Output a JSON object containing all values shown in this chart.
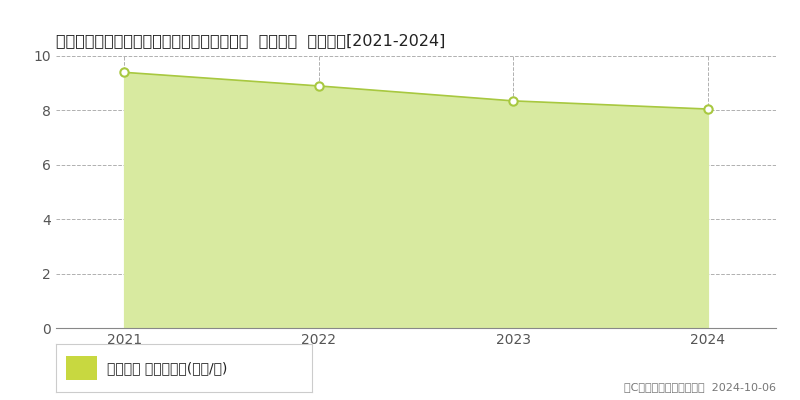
{
  "title": "愛知県知多郡南知多町大字豊浜字鳥居８８番  基準地価  地価推移[2021-2024]",
  "years": [
    2021,
    2022,
    2023,
    2024
  ],
  "values": [
    9.4,
    8.9,
    8.35,
    8.05
  ],
  "line_color": "#a8c840",
  "fill_color": "#d8eaa0",
  "marker_color": "#ffffff",
  "marker_edge_color": "#a8c840",
  "ylim": [
    0,
    10
  ],
  "yticks": [
    0,
    2,
    4,
    6,
    8,
    10
  ],
  "xlim": [
    2020.65,
    2024.35
  ],
  "xticks": [
    2021,
    2022,
    2023,
    2024
  ],
  "grid_color": "#b0b0b0",
  "background_color": "#ffffff",
  "legend_label": "基準地価 平均坪単価(万円/坪)",
  "legend_marker_color": "#c8d840",
  "copyright_text": "（C）土地価格ドットコム  2024-10-06",
  "title_fontsize": 11.5,
  "tick_fontsize": 10,
  "legend_fontsize": 10,
  "copyright_fontsize": 8,
  "axis_bg_color": "#ffffff",
  "chart_bg_color": "#f5f5f5"
}
